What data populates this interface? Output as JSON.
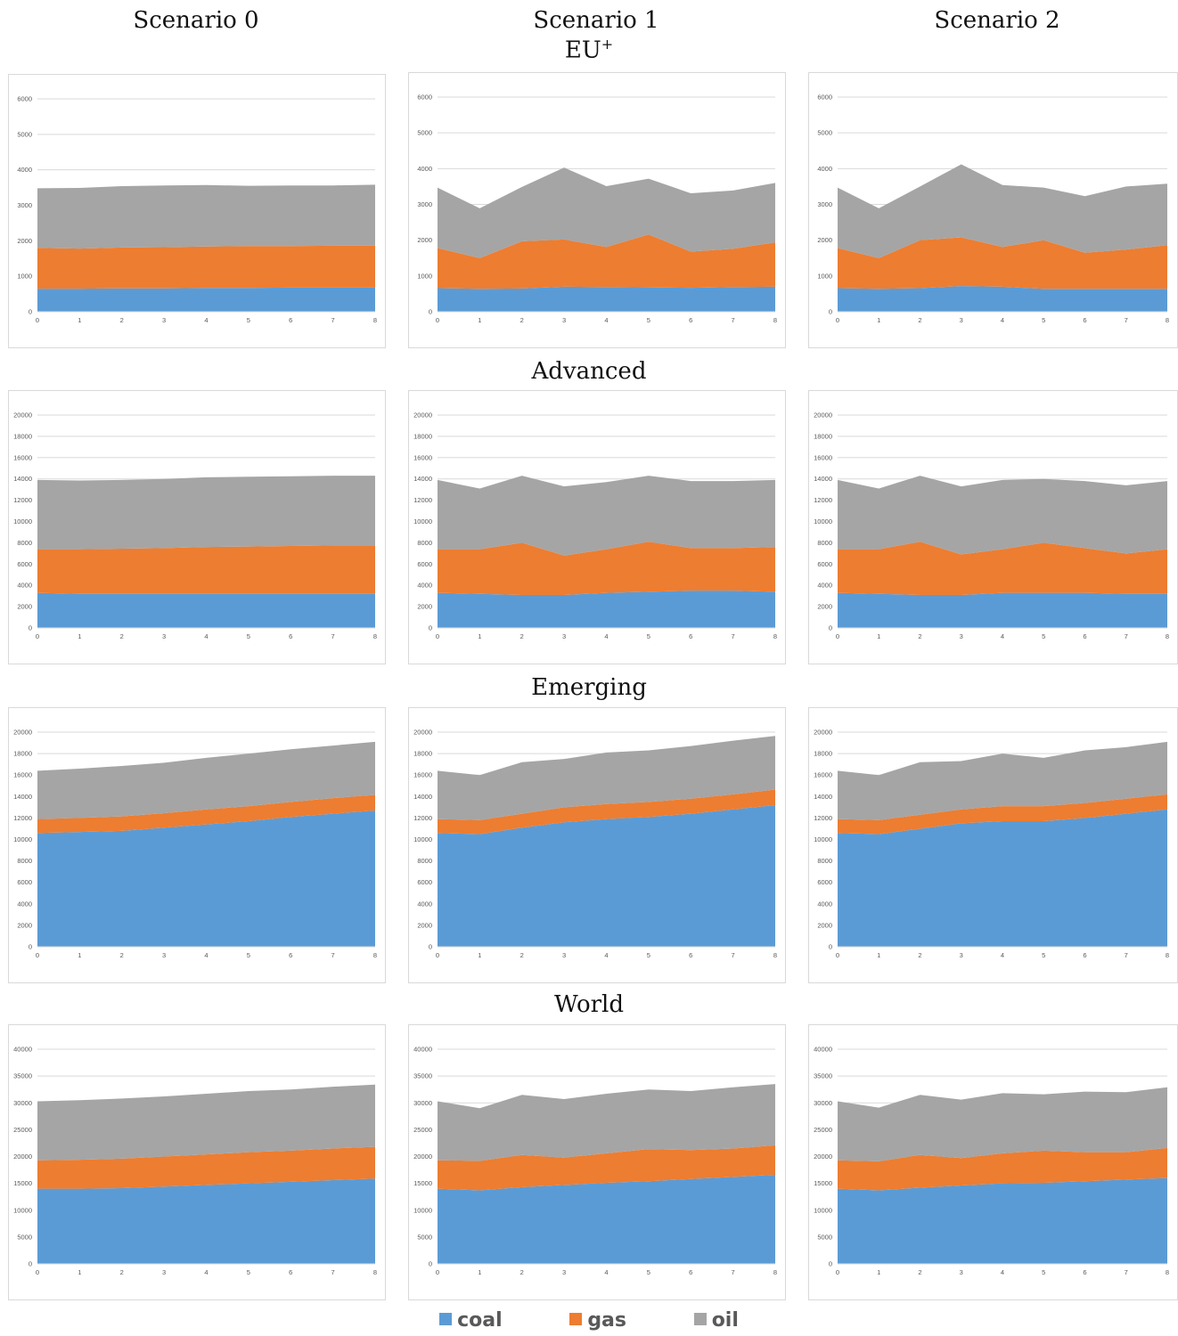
{
  "colors": {
    "coal": "#5b9bd5",
    "gas": "#ed7d31",
    "oil": "#a5a5a5"
  },
  "columns": [
    "Scenario 0",
    "Scenario 1",
    "Scenario 2"
  ],
  "legend": [
    {
      "label": "coal",
      "color": "#5b9bd5"
    },
    {
      "label": "gas",
      "color": "#ed7d31"
    },
    {
      "label": "oil",
      "color": "#a5a5a5"
    }
  ],
  "chart_data": [
    {
      "type": "area",
      "region": "EU",
      "region_sup": "+",
      "scenario": "Scenario 0",
      "x": [
        0,
        1,
        2,
        3,
        4,
        5,
        6,
        7,
        8
      ],
      "ylim": [
        0,
        6000
      ],
      "yticks": [
        0,
        1000,
        2000,
        3000,
        4000,
        5000,
        6000
      ],
      "series": [
        {
          "name": "coal",
          "values": [
            650,
            650,
            660,
            660,
            670,
            670,
            680,
            680,
            680
          ]
        },
        {
          "name": "gas",
          "values": [
            1150,
            1130,
            1150,
            1160,
            1170,
            1180,
            1170,
            1180,
            1180
          ]
        },
        {
          "name": "oil",
          "values": [
            1680,
            1710,
            1730,
            1740,
            1730,
            1700,
            1710,
            1700,
            1720
          ]
        }
      ]
    },
    {
      "type": "area",
      "region": "EU",
      "region_sup": "+",
      "scenario": "Scenario 1",
      "x": [
        0,
        1,
        2,
        3,
        4,
        5,
        6,
        7,
        8
      ],
      "ylim": [
        0,
        6000
      ],
      "yticks": [
        0,
        1000,
        2000,
        3000,
        4000,
        5000,
        6000
      ],
      "series": [
        {
          "name": "coal",
          "values": [
            660,
            640,
            650,
            700,
            690,
            680,
            670,
            690,
            700
          ]
        },
        {
          "name": "gas",
          "values": [
            1120,
            860,
            1320,
            1320,
            1120,
            1480,
            1010,
            1070,
            1240
          ]
        },
        {
          "name": "oil",
          "values": [
            1690,
            1390,
            1520,
            2010,
            1700,
            1560,
            1630,
            1630,
            1660
          ]
        }
      ]
    },
    {
      "type": "area",
      "region": "EU",
      "region_sup": "+",
      "scenario": "Scenario 2",
      "x": [
        0,
        1,
        2,
        3,
        4,
        5,
        6,
        7,
        8
      ],
      "ylim": [
        0,
        6000
      ],
      "yticks": [
        0,
        1000,
        2000,
        3000,
        4000,
        5000,
        6000
      ],
      "series": [
        {
          "name": "coal",
          "values": [
            660,
            640,
            660,
            720,
            700,
            640,
            640,
            640,
            640
          ]
        },
        {
          "name": "gas",
          "values": [
            1120,
            860,
            1340,
            1360,
            1110,
            1360,
            1010,
            1100,
            1220
          ]
        },
        {
          "name": "oil",
          "values": [
            1690,
            1390,
            1500,
            2040,
            1730,
            1470,
            1580,
            1760,
            1720
          ]
        }
      ]
    },
    {
      "type": "area",
      "region": "Advanced",
      "scenario": "Scenario 0",
      "x": [
        0,
        1,
        2,
        3,
        4,
        5,
        6,
        7,
        8
      ],
      "ylim": [
        0,
        20000
      ],
      "yticks": [
        0,
        2000,
        4000,
        6000,
        8000,
        10000,
        12000,
        14000,
        16000,
        18000,
        20000
      ],
      "series": [
        {
          "name": "coal",
          "values": [
            3300,
            3200,
            3200,
            3200,
            3200,
            3200,
            3200,
            3200,
            3200
          ]
        },
        {
          "name": "gas",
          "values": [
            4100,
            4200,
            4250,
            4300,
            4400,
            4450,
            4500,
            4550,
            4550
          ]
        },
        {
          "name": "oil",
          "values": [
            6500,
            6450,
            6450,
            6500,
            6550,
            6550,
            6550,
            6550,
            6550
          ]
        }
      ]
    },
    {
      "type": "area",
      "region": "Advanced",
      "scenario": "Scenario 1",
      "x": [
        0,
        1,
        2,
        3,
        4,
        5,
        6,
        7,
        8
      ],
      "ylim": [
        0,
        20000
      ],
      "yticks": [
        0,
        2000,
        4000,
        6000,
        8000,
        10000,
        12000,
        14000,
        16000,
        18000,
        20000
      ],
      "series": [
        {
          "name": "coal",
          "values": [
            3300,
            3200,
            3100,
            3100,
            3300,
            3400,
            3500,
            3500,
            3400
          ]
        },
        {
          "name": "gas",
          "values": [
            4100,
            4200,
            4900,
            3700,
            4100,
            4700,
            4000,
            4000,
            4200
          ]
        },
        {
          "name": "oil",
          "values": [
            6500,
            5700,
            6300,
            6500,
            6300,
            6200,
            6300,
            6300,
            6300
          ]
        }
      ]
    },
    {
      "type": "area",
      "region": "Advanced",
      "scenario": "Scenario 2",
      "x": [
        0,
        1,
        2,
        3,
        4,
        5,
        6,
        7,
        8
      ],
      "ylim": [
        0,
        20000
      ],
      "yticks": [
        0,
        2000,
        4000,
        6000,
        8000,
        10000,
        12000,
        14000,
        16000,
        18000,
        20000
      ],
      "series": [
        {
          "name": "coal",
          "values": [
            3300,
            3200,
            3100,
            3100,
            3300,
            3300,
            3300,
            3200,
            3200
          ]
        },
        {
          "name": "gas",
          "values": [
            4100,
            4200,
            5000,
            3800,
            4100,
            4700,
            4200,
            3800,
            4200
          ]
        },
        {
          "name": "oil",
          "values": [
            6500,
            5700,
            6200,
            6400,
            6500,
            6000,
            6300,
            6400,
            6400
          ]
        }
      ]
    },
    {
      "type": "area",
      "region": "Emerging",
      "scenario": "Scenario 0",
      "x": [
        0,
        1,
        2,
        3,
        4,
        5,
        6,
        7,
        8
      ],
      "ylim": [
        0,
        20000
      ],
      "yticks": [
        0,
        2000,
        4000,
        6000,
        8000,
        10000,
        12000,
        14000,
        16000,
        18000,
        20000
      ],
      "series": [
        {
          "name": "coal",
          "values": [
            10600,
            10700,
            10800,
            11100,
            11400,
            11700,
            12100,
            12400,
            12700
          ]
        },
        {
          "name": "gas",
          "values": [
            1300,
            1300,
            1350,
            1350,
            1400,
            1400,
            1400,
            1450,
            1450
          ]
        },
        {
          "name": "oil",
          "values": [
            4500,
            4600,
            4700,
            4700,
            4800,
            4900,
            4900,
            4900,
            4950
          ]
        }
      ]
    },
    {
      "type": "area",
      "region": "Emerging",
      "scenario": "Scenario 1",
      "x": [
        0,
        1,
        2,
        3,
        4,
        5,
        6,
        7,
        8
      ],
      "ylim": [
        0,
        20000
      ],
      "yticks": [
        0,
        2000,
        4000,
        6000,
        8000,
        10000,
        12000,
        14000,
        16000,
        18000,
        20000
      ],
      "series": [
        {
          "name": "coal",
          "values": [
            10600,
            10500,
            11100,
            11600,
            11900,
            12100,
            12400,
            12800,
            13200
          ]
        },
        {
          "name": "gas",
          "values": [
            1300,
            1300,
            1300,
            1400,
            1400,
            1400,
            1400,
            1400,
            1450
          ]
        },
        {
          "name": "oil",
          "values": [
            4500,
            4200,
            4800,
            4500,
            4800,
            4800,
            4900,
            5000,
            5000
          ]
        }
      ]
    },
    {
      "type": "area",
      "region": "Emerging",
      "scenario": "Scenario 2",
      "x": [
        0,
        1,
        2,
        3,
        4,
        5,
        6,
        7,
        8
      ],
      "ylim": [
        0,
        20000
      ],
      "yticks": [
        0,
        2000,
        4000,
        6000,
        8000,
        10000,
        12000,
        14000,
        16000,
        18000,
        20000
      ],
      "series": [
        {
          "name": "coal",
          "values": [
            10600,
            10500,
            11000,
            11500,
            11700,
            11700,
            12000,
            12400,
            12800
          ]
        },
        {
          "name": "gas",
          "values": [
            1300,
            1300,
            1300,
            1300,
            1400,
            1400,
            1400,
            1400,
            1400
          ]
        },
        {
          "name": "oil",
          "values": [
            4500,
            4200,
            4900,
            4500,
            4900,
            4500,
            4900,
            4800,
            4900
          ]
        }
      ]
    },
    {
      "type": "area",
      "region": "World",
      "scenario": "Scenario 0",
      "x": [
        0,
        1,
        2,
        3,
        4,
        5,
        6,
        7,
        8
      ],
      "ylim": [
        0,
        40000
      ],
      "yticks": [
        0,
        5000,
        10000,
        15000,
        20000,
        25000,
        30000,
        35000,
        40000
      ],
      "series": [
        {
          "name": "coal",
          "values": [
            14000,
            14000,
            14100,
            14400,
            14700,
            15000,
            15300,
            15600,
            15900
          ]
        },
        {
          "name": "gas",
          "values": [
            5300,
            5400,
            5500,
            5600,
            5700,
            5800,
            5800,
            5900,
            5900
          ]
        },
        {
          "name": "oil",
          "values": [
            11000,
            11100,
            11200,
            11200,
            11300,
            11400,
            11400,
            11500,
            11600
          ]
        }
      ]
    },
    {
      "type": "area",
      "region": "World",
      "scenario": "Scenario 1",
      "x": [
        0,
        1,
        2,
        3,
        4,
        5,
        6,
        7,
        8
      ],
      "ylim": [
        0,
        40000
      ],
      "yticks": [
        0,
        5000,
        10000,
        15000,
        20000,
        25000,
        30000,
        35000,
        40000
      ],
      "series": [
        {
          "name": "coal",
          "values": [
            14000,
            13700,
            14300,
            14700,
            15100,
            15400,
            15800,
            16200,
            16600
          ]
        },
        {
          "name": "gas",
          "values": [
            5300,
            5500,
            6000,
            5100,
            5500,
            6000,
            5400,
            5300,
            5500
          ]
        },
        {
          "name": "oil",
          "values": [
            11000,
            9800,
            11200,
            10900,
            11100,
            11100,
            11000,
            11400,
            11400
          ]
        }
      ]
    },
    {
      "type": "area",
      "region": "World",
      "scenario": "Scenario 2",
      "x": [
        0,
        1,
        2,
        3,
        4,
        5,
        6,
        7,
        8
      ],
      "ylim": [
        0,
        40000
      ],
      "yticks": [
        0,
        5000,
        10000,
        15000,
        20000,
        25000,
        30000,
        35000,
        40000
      ],
      "series": [
        {
          "name": "coal",
          "values": [
            14000,
            13700,
            14200,
            14600,
            15000,
            15100,
            15400,
            15700,
            16000
          ]
        },
        {
          "name": "gas",
          "values": [
            5300,
            5400,
            6100,
            5100,
            5600,
            6000,
            5400,
            5100,
            5600
          ]
        },
        {
          "name": "oil",
          "values": [
            11000,
            10000,
            11200,
            10900,
            11200,
            10500,
            11300,
            11200,
            11300
          ]
        }
      ]
    }
  ]
}
